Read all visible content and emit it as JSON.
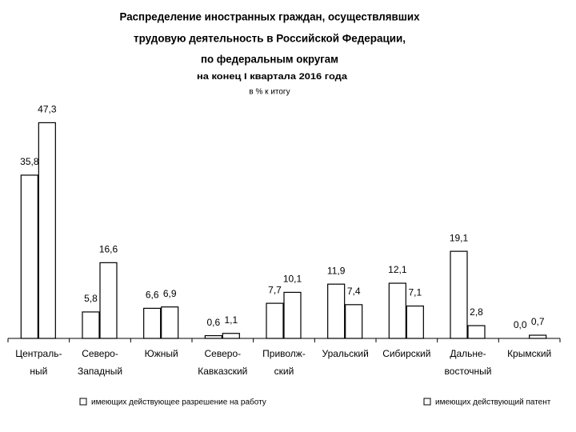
{
  "chart_data": {
    "type": "bar",
    "title": [
      "Распределение иностранных граждан, осуществлявших",
      "трудовую деятельность в Российской Федерации,",
      "по федеральным округам"
    ],
    "subtitle": "на конец I квартала 2016 года",
    "unit": "в % к итогу",
    "categories": [
      "Централь-\nный",
      "Северо-\nЗападный",
      "Южный",
      "Северо-\nКавказский",
      "Приволж-\nский",
      "Уральский",
      "Сибирский",
      "Дальне-\nвосточный",
      "Крымский"
    ],
    "ylim": [
      0,
      50
    ],
    "series": [
      {
        "name": "имеющих действующее разрешение на работу",
        "color": "#ffffff",
        "values": [
          35.8,
          5.8,
          6.6,
          0.6,
          7.7,
          11.9,
          12.1,
          19.1,
          0.0
        ],
        "value_labels": [
          "35,8",
          "5,8",
          "6,6",
          "0,6",
          "7,7",
          "11,9",
          "12,1",
          "19,1",
          "0,0"
        ]
      },
      {
        "name": "имеющих действующий патент",
        "color": "#ffffff",
        "values": [
          47.3,
          16.6,
          6.9,
          1.1,
          10.1,
          7.4,
          7.1,
          2.8,
          0.7
        ],
        "value_labels": [
          "47,3",
          "16,6",
          "6,9",
          "1,1",
          "10,1",
          "7,4",
          "7,1",
          "2,8",
          "0,7"
        ]
      }
    ]
  }
}
